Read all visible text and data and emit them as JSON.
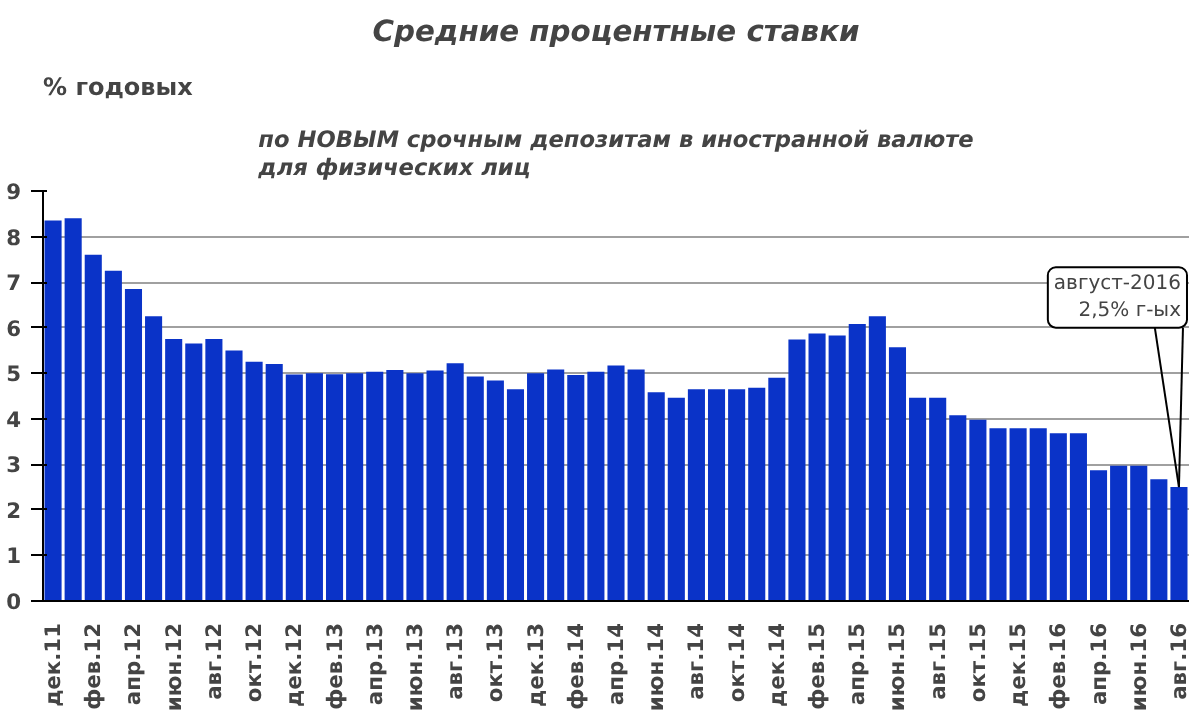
{
  "chart_data": {
    "type": "bar",
    "title": "Средние процентные ставки",
    "subtitle": "по НОВЫМ срочным депозитам в иностранной валюте\nдля физических лиц",
    "ylabel": "% годовых",
    "categories": [
      "дек.11",
      null,
      "фев.12",
      null,
      "апр.12",
      null,
      "июн.12",
      null,
      "авг.12",
      null,
      "окт.12",
      null,
      "дек.12",
      null,
      "фев.13",
      null,
      "апр.13",
      null,
      "июн.13",
      null,
      "авг.13",
      null,
      "окт.13",
      null,
      "дек.13",
      null,
      "фев.14",
      null,
      "апр.14",
      null,
      "июн.14",
      null,
      "авг.14",
      null,
      "окт.14",
      null,
      "дек.14",
      null,
      "фев.15",
      null,
      "апр.15",
      null,
      "июн.15",
      null,
      "авг.15",
      null,
      "окт.15",
      null,
      "дек.15",
      null,
      "фев.16",
      null,
      "апр.16",
      null,
      "июн.16",
      null,
      "авг.16"
    ],
    "values": [
      8.35,
      8.4,
      7.6,
      7.25,
      6.85,
      6.25,
      5.75,
      5.65,
      5.75,
      5.5,
      5.25,
      5.2,
      4.97,
      5.0,
      4.98,
      5.0,
      5.03,
      5.07,
      5.0,
      5.06,
      5.22,
      4.93,
      4.84,
      4.65,
      5.0,
      5.08,
      4.96,
      5.03,
      5.17,
      5.08,
      4.58,
      4.46,
      4.65,
      4.65,
      4.65,
      4.68,
      4.9,
      5.74,
      5.87,
      5.83,
      6.08,
      6.25,
      5.57,
      4.46,
      4.46,
      4.08,
      3.98,
      3.79,
      3.79,
      3.79,
      3.68,
      3.68,
      2.87,
      2.97,
      2.97,
      2.67,
      2.5
    ],
    "color": "#0a33c8",
    "ylim": [
      0,
      9
    ],
    "yticks": [
      0,
      1,
      2,
      3,
      4,
      5,
      6,
      7,
      8,
      9
    ],
    "grid": "y",
    "annotations": [
      {
        "text": "август-2016\n2,5% г-ых",
        "x": "авг.16",
        "y": 2.5
      }
    ]
  }
}
